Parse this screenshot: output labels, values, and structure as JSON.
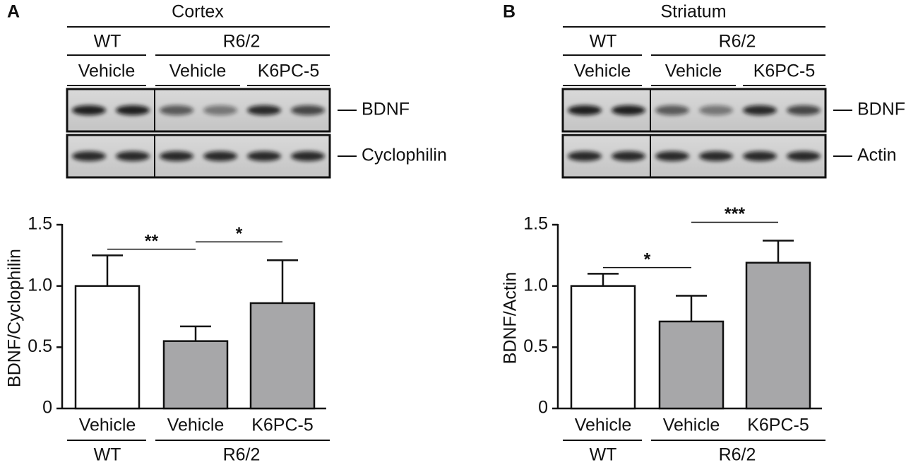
{
  "chart_data": [
    {
      "type": "bar",
      "panel": "A",
      "region": "Cortex",
      "bands": [
        "BDNF",
        "Cyclophilin"
      ],
      "ylabel": "BDNF/Cyclophilin",
      "categories": [
        "Vehicle",
        "Vehicle",
        "K6PC-5"
      ],
      "groups": [
        "WT",
        "R6/2"
      ],
      "values": [
        1.0,
        0.55,
        0.86
      ],
      "errors": [
        0.25,
        0.12,
        0.35
      ],
      "colors": [
        "#ffffff",
        "#a7a7a9",
        "#a7a7a9"
      ],
      "ylim": [
        0,
        1.5
      ],
      "yticks": [
        0,
        0.5,
        {
          "value": 1,
          "label": "1.0"
        },
        1.5
      ],
      "significance": [
        {
          "pair": [
            0,
            1
          ],
          "label": "**"
        },
        {
          "pair": [
            1,
            2
          ],
          "label": "*"
        }
      ]
    },
    {
      "type": "bar",
      "panel": "B",
      "region": "Striatum",
      "bands": [
        "BDNF",
        "Actin"
      ],
      "ylabel": "BDNF/Actin",
      "categories": [
        "Vehicle",
        "Vehicle",
        "K6PC-5"
      ],
      "groups": [
        "WT",
        "R6/2"
      ],
      "values": [
        1.0,
        0.71,
        1.19
      ],
      "errors": [
        0.1,
        0.21,
        0.18
      ],
      "colors": [
        "#ffffff",
        "#a7a7a9",
        "#a7a7a9"
      ],
      "ylim": [
        0,
        1.5
      ],
      "yticks": [
        0,
        0.5,
        {
          "value": 1,
          "label": "1.0"
        },
        1.5
      ],
      "significance": [
        {
          "pair": [
            0,
            1
          ],
          "label": "*"
        },
        {
          "pair": [
            1,
            2
          ],
          "label": "***"
        }
      ]
    }
  ]
}
